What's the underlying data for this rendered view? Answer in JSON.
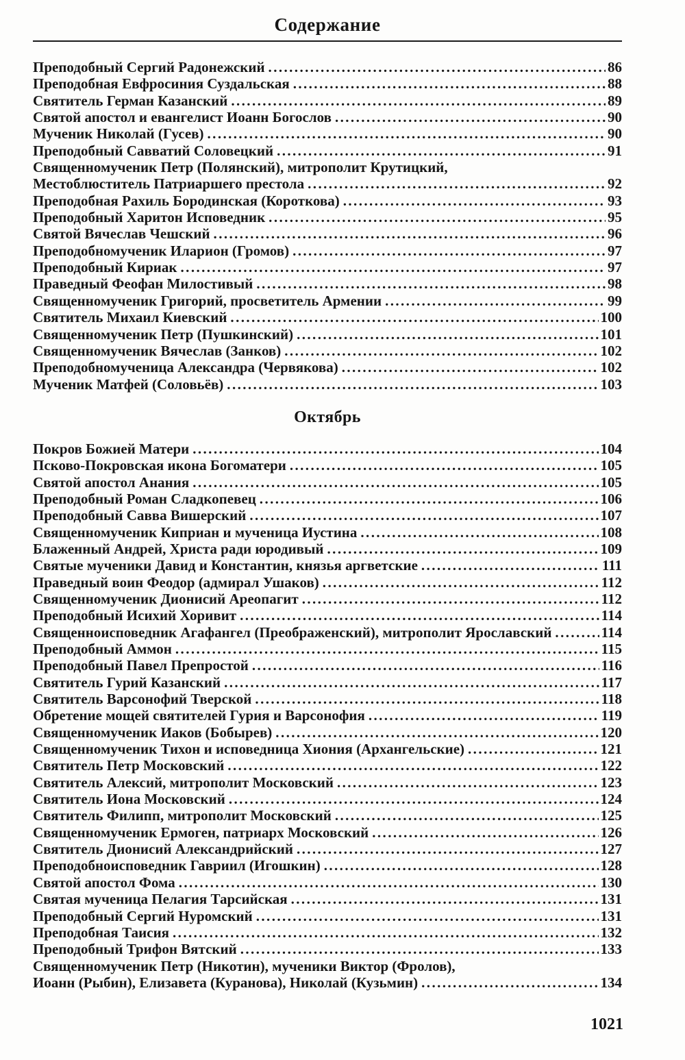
{
  "title": "Содержание",
  "page_number": "1021",
  "sections": [
    {
      "heading": null,
      "entries": [
        {
          "lines": [
            "Преподобный Сергий Радонежский"
          ],
          "page": "86"
        },
        {
          "lines": [
            "Преподобная Евфросиния Суздальская"
          ],
          "page": "88"
        },
        {
          "lines": [
            "Святитель Герман Казанский"
          ],
          "page": "89"
        },
        {
          "lines": [
            "Святой апостол и евангелист Иоанн Богослов"
          ],
          "page": "90"
        },
        {
          "lines": [
            "Мученик Николай (Гусев)"
          ],
          "page": "90"
        },
        {
          "lines": [
            "Преподобный Савватий Соловецкий"
          ],
          "page": "91"
        },
        {
          "lines": [
            "Священномученик Петр (Полянский), митрополит Крутицкий,",
            "Местоблюститель Патриаршего престола"
          ],
          "page": "92"
        },
        {
          "lines": [
            "Преподобная Рахиль Бородинская (Короткова)"
          ],
          "page": "93"
        },
        {
          "lines": [
            "Преподобный Харитон Исповедник"
          ],
          "page": "95"
        },
        {
          "lines": [
            "Святой Вячеслав Чешский"
          ],
          "page": "96"
        },
        {
          "lines": [
            "Преподобномученик Иларион (Громов)"
          ],
          "page": "97"
        },
        {
          "lines": [
            "Преподобный Кириак"
          ],
          "page": "97"
        },
        {
          "lines": [
            "Праведный Феофан Милостивый"
          ],
          "page": "98"
        },
        {
          "lines": [
            "Священномученик Григорий, просветитель Армении"
          ],
          "page": "99"
        },
        {
          "lines": [
            "Святитель Михаил Киевский"
          ],
          "page": "100"
        },
        {
          "lines": [
            "Священномученик Петр (Пушкинский)"
          ],
          "page": "101"
        },
        {
          "lines": [
            "Священномученик Вячеслав (Занков)"
          ],
          "page": "102"
        },
        {
          "lines": [
            "Преподобномученица Александра (Червякова)"
          ],
          "page": "102"
        },
        {
          "lines": [
            "Мученик Матфей (Соловьёв)"
          ],
          "page": "103"
        }
      ]
    },
    {
      "heading": "Октябрь",
      "entries": [
        {
          "lines": [
            "Покров Божией Матери"
          ],
          "page": "104"
        },
        {
          "lines": [
            "Псково-Покровская икона Богоматери"
          ],
          "page": "105"
        },
        {
          "lines": [
            "Святой апостол Анания"
          ],
          "page": "105"
        },
        {
          "lines": [
            "Преподобный Роман Сладкопевец"
          ],
          "page": "106"
        },
        {
          "lines": [
            "Преподобный Савва Вишерский"
          ],
          "page": "107"
        },
        {
          "lines": [
            "Священномученик Киприан и мученица Иустина"
          ],
          "page": "108"
        },
        {
          "lines": [
            "Блаженный Андрей, Христа ради юродивый"
          ],
          "page": "109"
        },
        {
          "lines": [
            "Святые мученики Давид и Константин, князья аргветские"
          ],
          "page": "111"
        },
        {
          "lines": [
            "Праведный воин Феодор (адмирал Ушаков)"
          ],
          "page": "112"
        },
        {
          "lines": [
            "Священномученик Дионисий Ареопагит"
          ],
          "page": "112"
        },
        {
          "lines": [
            "Преподобный Исихий Хоривит"
          ],
          "page": "114"
        },
        {
          "lines": [
            "Священноисповедник Агафангел (Преображенский), митрополит Ярославский"
          ],
          "page": "114"
        },
        {
          "lines": [
            "Преподобный Аммон"
          ],
          "page": "115"
        },
        {
          "lines": [
            "Преподобный Павел Препростой"
          ],
          "page": "116"
        },
        {
          "lines": [
            "Святитель Гурий Казанский"
          ],
          "page": "117"
        },
        {
          "lines": [
            "Святитель Варсонофий Тверской"
          ],
          "page": "118"
        },
        {
          "lines": [
            "Обретение мощей святителей Гурия и Варсонофия"
          ],
          "page": "119"
        },
        {
          "lines": [
            "Священномученик Иаков (Бобырев)"
          ],
          "page": "120"
        },
        {
          "lines": [
            "Священномученик Тихон и исповедница Хиония (Архангельские)"
          ],
          "page": "121"
        },
        {
          "lines": [
            "Святитель Петр Московский"
          ],
          "page": "122"
        },
        {
          "lines": [
            "Святитель Алексий, митрополит Московский"
          ],
          "page": "123"
        },
        {
          "lines": [
            "Святитель Иона Московский"
          ],
          "page": "124"
        },
        {
          "lines": [
            "Святитель Филипп, митрополит Московский"
          ],
          "page": "125"
        },
        {
          "lines": [
            "Священномученик Ермоген, патриарх Московский"
          ],
          "page": "126"
        },
        {
          "lines": [
            "Святитель Дионисий Александрийский"
          ],
          "page": "127"
        },
        {
          "lines": [
            "Преподобноисповедник Гавриил (Игошкин)"
          ],
          "page": "128"
        },
        {
          "lines": [
            "Святой апостол Фома"
          ],
          "page": "130"
        },
        {
          "lines": [
            "Святая мученица Пелагия Тарсийская"
          ],
          "page": "131"
        },
        {
          "lines": [
            "Преподобный Сергий Нуромский"
          ],
          "page": "131"
        },
        {
          "lines": [
            "Преподобная Таисия"
          ],
          "page": "132"
        },
        {
          "lines": [
            "Преподобный Трифон Вятский"
          ],
          "page": "133"
        },
        {
          "lines": [
            "Священномученик Петр (Никотин), мученики Виктор (Фролов),",
            "Иоанн (Рыбин), Елизавета (Куранова), Николай (Кузьмин)"
          ],
          "page": "134"
        }
      ]
    }
  ]
}
